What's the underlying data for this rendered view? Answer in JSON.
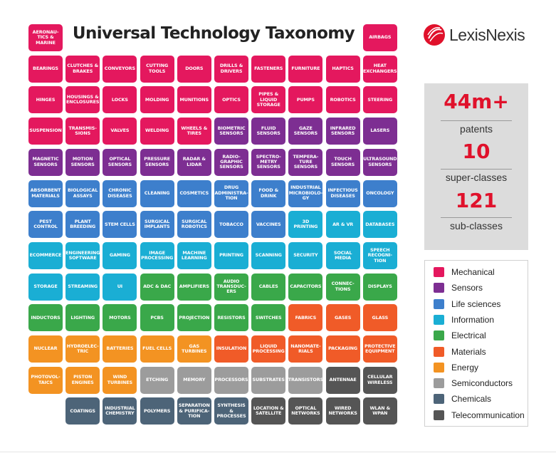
{
  "title": "Universal Technology Taxonomy",
  "brand": "LexisNexis",
  "colors": {
    "mechanical": "#e4185e",
    "sensors": "#7d2e92",
    "life_sciences": "#3d7fcc",
    "information": "#1aaed4",
    "electrical": "#3aa84a",
    "materials": "#f05b28",
    "energy": "#f39322",
    "semiconductors": "#9c9c9c",
    "chemicals": "#4d6478",
    "telecommunication": "#555555",
    "accent": "#e0112b"
  },
  "stats": [
    {
      "value": "44m+",
      "label": "patents"
    },
    {
      "value": "10",
      "label": "super-classes"
    },
    {
      "value": "121",
      "label": "sub-classes"
    }
  ],
  "legend": [
    {
      "label": "Mechanical",
      "category": "mechanical"
    },
    {
      "label": "Sensors",
      "category": "sensors"
    },
    {
      "label": "Life sciences",
      "category": "life_sciences"
    },
    {
      "label": "Information",
      "category": "information"
    },
    {
      "label": "Electrical",
      "category": "electrical"
    },
    {
      "label": "Materials",
      "category": "materials"
    },
    {
      "label": "Energy",
      "category": "energy"
    },
    {
      "label": "Semiconductors",
      "category": "semiconductors"
    },
    {
      "label": "Chemicals",
      "category": "chemicals"
    },
    {
      "label": "Telecommunication",
      "category": "telecommunication"
    }
  ],
  "tiles": [
    {
      "label": "AERONAU-\nTICS &\nMARINE",
      "category": "mechanical",
      "row": 0,
      "col": 0
    },
    {
      "label": "AIRBAGS",
      "category": "mechanical",
      "row": 0,
      "col": 9
    },
    {
      "label": "BEARINGS",
      "category": "mechanical",
      "row": 1,
      "col": 0
    },
    {
      "label": "CLUTCHES &\nBRAKES",
      "category": "mechanical",
      "row": 1,
      "col": 1
    },
    {
      "label": "CONVEYORS",
      "category": "mechanical",
      "row": 1,
      "col": 2
    },
    {
      "label": "CUTTING\nTOOLS",
      "category": "mechanical",
      "row": 1,
      "col": 3
    },
    {
      "label": "DOORS",
      "category": "mechanical",
      "row": 1,
      "col": 4
    },
    {
      "label": "DRILLS &\nDRIVERS",
      "category": "mechanical",
      "row": 1,
      "col": 5
    },
    {
      "label": "FASTENERS",
      "category": "mechanical",
      "row": 1,
      "col": 6
    },
    {
      "label": "FURNITURE",
      "category": "mechanical",
      "row": 1,
      "col": 7
    },
    {
      "label": "HAPTICS",
      "category": "mechanical",
      "row": 1,
      "col": 8
    },
    {
      "label": "HEAT\nEXCHANGERS",
      "category": "mechanical",
      "row": 1,
      "col": 9
    },
    {
      "label": "HINGES",
      "category": "mechanical",
      "row": 2,
      "col": 0
    },
    {
      "label": "HOUSINGS &\nENCLOSURES",
      "category": "mechanical",
      "row": 2,
      "col": 1
    },
    {
      "label": "LOCKS",
      "category": "mechanical",
      "row": 2,
      "col": 2
    },
    {
      "label": "MOLDING",
      "category": "mechanical",
      "row": 2,
      "col": 3
    },
    {
      "label": "MUNITIONS",
      "category": "mechanical",
      "row": 2,
      "col": 4
    },
    {
      "label": "OPTICS",
      "category": "mechanical",
      "row": 2,
      "col": 5
    },
    {
      "label": "PIPES &\nLIQUID\nSTORAGE",
      "category": "mechanical",
      "row": 2,
      "col": 6
    },
    {
      "label": "PUMPS",
      "category": "mechanical",
      "row": 2,
      "col": 7
    },
    {
      "label": "ROBOTICS",
      "category": "mechanical",
      "row": 2,
      "col": 8
    },
    {
      "label": "STEERING",
      "category": "mechanical",
      "row": 2,
      "col": 9
    },
    {
      "label": "SUSPENSION",
      "category": "mechanical",
      "row": 3,
      "col": 0
    },
    {
      "label": "TRANSMIS-\nSIONS",
      "category": "mechanical",
      "row": 3,
      "col": 1
    },
    {
      "label": "VALVES",
      "category": "mechanical",
      "row": 3,
      "col": 2
    },
    {
      "label": "WELDING",
      "category": "mechanical",
      "row": 3,
      "col": 3
    },
    {
      "label": "WHEELS &\nTIRES",
      "category": "mechanical",
      "row": 3,
      "col": 4
    },
    {
      "label": "BIOMETRIC\nSENSORS",
      "category": "sensors",
      "row": 3,
      "col": 5
    },
    {
      "label": "FLUID\nSENSORS",
      "category": "sensors",
      "row": 3,
      "col": 6
    },
    {
      "label": "GAZE\nSENSORS",
      "category": "sensors",
      "row": 3,
      "col": 7
    },
    {
      "label": "INFRARED\nSENSORS",
      "category": "sensors",
      "row": 3,
      "col": 8
    },
    {
      "label": "LASERS",
      "category": "sensors",
      "row": 3,
      "col": 9
    },
    {
      "label": "MAGNETIC\nSENSORS",
      "category": "sensors",
      "row": 4,
      "col": 0
    },
    {
      "label": "MOTION\nSENSORS",
      "category": "sensors",
      "row": 4,
      "col": 1
    },
    {
      "label": "OPTICAL\nSENSORS",
      "category": "sensors",
      "row": 4,
      "col": 2
    },
    {
      "label": "PRESSURE\nSENSORS",
      "category": "sensors",
      "row": 4,
      "col": 3
    },
    {
      "label": "RADAR &\nLIDAR",
      "category": "sensors",
      "row": 4,
      "col": 4
    },
    {
      "label": "RADIO-\nGRAPHIC\nSENSORS",
      "category": "sensors",
      "row": 4,
      "col": 5
    },
    {
      "label": "SPECTRO-\nMETRY\nSENSORS",
      "category": "sensors",
      "row": 4,
      "col": 6
    },
    {
      "label": "TEMPERA-\nTURE\nSENSORS",
      "category": "sensors",
      "row": 4,
      "col": 7
    },
    {
      "label": "TOUCH\nSENSORS",
      "category": "sensors",
      "row": 4,
      "col": 8
    },
    {
      "label": "ULTRASOUND\nSENSORS",
      "category": "sensors",
      "row": 4,
      "col": 9
    },
    {
      "label": "ABSORBENT\nMATERIALS",
      "category": "life_sciences",
      "row": 5,
      "col": 0
    },
    {
      "label": "BIOLOGICAL\nASSAYS",
      "category": "life_sciences",
      "row": 5,
      "col": 1
    },
    {
      "label": "CHRONIC\nDISEASES",
      "category": "life_sciences",
      "row": 5,
      "col": 2
    },
    {
      "label": "CLEANING",
      "category": "life_sciences",
      "row": 5,
      "col": 3
    },
    {
      "label": "COSMETICS",
      "category": "life_sciences",
      "row": 5,
      "col": 4
    },
    {
      "label": "DRUG\nADMINISTRA-\nTION",
      "category": "life_sciences",
      "row": 5,
      "col": 5
    },
    {
      "label": "FOOD &\nDRINK",
      "category": "life_sciences",
      "row": 5,
      "col": 6
    },
    {
      "label": "INDUSTRIAL\nMICROBIOLO-\nGY",
      "category": "life_sciences",
      "row": 5,
      "col": 7
    },
    {
      "label": "INFECTIOUS\nDISEASES",
      "category": "life_sciences",
      "row": 5,
      "col": 8
    },
    {
      "label": "ONCOLOGY",
      "category": "life_sciences",
      "row": 5,
      "col": 9
    },
    {
      "label": "PEST\nCONTROL",
      "category": "life_sciences",
      "row": 6,
      "col": 0
    },
    {
      "label": "PLANT\nBREEDING",
      "category": "life_sciences",
      "row": 6,
      "col": 1
    },
    {
      "label": "STEM CELLS",
      "category": "life_sciences",
      "row": 6,
      "col": 2
    },
    {
      "label": "SURGICAL\nIMPLANTS",
      "category": "life_sciences",
      "row": 6,
      "col": 3
    },
    {
      "label": "SURGICAL\nROBOTICS",
      "category": "life_sciences",
      "row": 6,
      "col": 4
    },
    {
      "label": "TOBACCO",
      "category": "life_sciences",
      "row": 6,
      "col": 5
    },
    {
      "label": "VACCINES",
      "category": "life_sciences",
      "row": 6,
      "col": 6
    },
    {
      "label": "3D\nPRINTING",
      "category": "information",
      "row": 6,
      "col": 7
    },
    {
      "label": "AR & VR",
      "category": "information",
      "row": 6,
      "col": 8
    },
    {
      "label": "DATABASES",
      "category": "information",
      "row": 6,
      "col": 9
    },
    {
      "label": "ECOMMERCE",
      "category": "information",
      "row": 7,
      "col": 0
    },
    {
      "label": "ENGINEERING\nSOFTWARE",
      "category": "information",
      "row": 7,
      "col": 1
    },
    {
      "label": "GAMING",
      "category": "information",
      "row": 7,
      "col": 2
    },
    {
      "label": "IMAGE\nPROCESSING",
      "category": "information",
      "row": 7,
      "col": 3
    },
    {
      "label": "MACHINE\nLEARNING",
      "category": "information",
      "row": 7,
      "col": 4
    },
    {
      "label": "PRINTING",
      "category": "information",
      "row": 7,
      "col": 5
    },
    {
      "label": "SCANNING",
      "category": "information",
      "row": 7,
      "col": 6
    },
    {
      "label": "SECURITY",
      "category": "information",
      "row": 7,
      "col": 7
    },
    {
      "label": "SOCIAL\nMEDIA",
      "category": "information",
      "row": 7,
      "col": 8
    },
    {
      "label": "SPEECH\nRECOGNI-\nTION",
      "category": "information",
      "row": 7,
      "col": 9
    },
    {
      "label": "STORAGE",
      "category": "information",
      "row": 8,
      "col": 0
    },
    {
      "label": "STREAMING",
      "category": "information",
      "row": 8,
      "col": 1
    },
    {
      "label": "UI",
      "category": "information",
      "row": 8,
      "col": 2
    },
    {
      "label": "ADC & DAC",
      "category": "electrical",
      "row": 8,
      "col": 3
    },
    {
      "label": "AMPLIFIERS",
      "category": "electrical",
      "row": 8,
      "col": 4
    },
    {
      "label": "AUDIO\nTRANSDUC-\nERS",
      "category": "electrical",
      "row": 8,
      "col": 5
    },
    {
      "label": "CABLES",
      "category": "electrical",
      "row": 8,
      "col": 6
    },
    {
      "label": "CAPACITORS",
      "category": "electrical",
      "row": 8,
      "col": 7
    },
    {
      "label": "CONNEC-\nTIONS",
      "category": "electrical",
      "row": 8,
      "col": 8
    },
    {
      "label": "DISPLAYS",
      "category": "electrical",
      "row": 8,
      "col": 9
    },
    {
      "label": "INDUCTORS",
      "category": "electrical",
      "row": 9,
      "col": 0
    },
    {
      "label": "LIGHTING",
      "category": "electrical",
      "row": 9,
      "col": 1
    },
    {
      "label": "MOTORS",
      "category": "electrical",
      "row": 9,
      "col": 2
    },
    {
      "label": "PCBS",
      "category": "electrical",
      "row": 9,
      "col": 3
    },
    {
      "label": "PROJECTION",
      "category": "electrical",
      "row": 9,
      "col": 4
    },
    {
      "label": "RESISTORS",
      "category": "electrical",
      "row": 9,
      "col": 5
    },
    {
      "label": "SWITCHES",
      "category": "electrical",
      "row": 9,
      "col": 6
    },
    {
      "label": "FABRICS",
      "category": "materials",
      "row": 9,
      "col": 7
    },
    {
      "label": "GASES",
      "category": "materials",
      "row": 9,
      "col": 8
    },
    {
      "label": "GLASS",
      "category": "materials",
      "row": 9,
      "col": 9
    },
    {
      "label": "NUCLEAR",
      "category": "energy",
      "row": 10,
      "col": 0
    },
    {
      "label": "HYDROELEC-\nTRIC",
      "category": "energy",
      "row": 10,
      "col": 1
    },
    {
      "label": "BATTERIES",
      "category": "energy",
      "row": 10,
      "col": 2
    },
    {
      "label": "FUEL CELLS",
      "category": "energy",
      "row": 10,
      "col": 3
    },
    {
      "label": "GAS\nTURBINES",
      "category": "energy",
      "row": 10,
      "col": 4
    },
    {
      "label": "INSULATION",
      "category": "materials",
      "row": 10,
      "col": 5
    },
    {
      "label": "LIQUID\nPROCESSING",
      "category": "materials",
      "row": 10,
      "col": 6
    },
    {
      "label": "NANOMATE-\nRIALS",
      "category": "materials",
      "row": 10,
      "col": 7
    },
    {
      "label": "PACKAGING",
      "category": "materials",
      "row": 10,
      "col": 8
    },
    {
      "label": "PROTECTIVE\nEQUIPMENT",
      "category": "materials",
      "row": 10,
      "col": 9
    },
    {
      "label": "PHOTOVOL-\nTAICS",
      "category": "energy",
      "row": 11,
      "col": 0
    },
    {
      "label": "PISTON\nENGINES",
      "category": "energy",
      "row": 11,
      "col": 1
    },
    {
      "label": "WIND\nTURBINES",
      "category": "energy",
      "row": 11,
      "col": 2
    },
    {
      "label": "ETCHING",
      "category": "semiconductors",
      "row": 11,
      "col": 3
    },
    {
      "label": "MEMORY",
      "category": "semiconductors",
      "row": 11,
      "col": 4
    },
    {
      "label": "PROCESSORS",
      "category": "semiconductors",
      "row": 11,
      "col": 5
    },
    {
      "label": "SUBSTRATES",
      "category": "semiconductors",
      "row": 11,
      "col": 6
    },
    {
      "label": "TRANSISTORS",
      "category": "semiconductors",
      "row": 11,
      "col": 7
    },
    {
      "label": "ANTENNAE",
      "category": "telecommunication",
      "row": 11,
      "col": 8
    },
    {
      "label": "CELLULAR\nWIRELESS",
      "category": "telecommunication",
      "row": 11,
      "col": 9
    },
    {
      "label": "COATINGS",
      "category": "chemicals",
      "row": 12,
      "col": 1
    },
    {
      "label": "INDUSTRIAL\nCHEMISTRY",
      "category": "chemicals",
      "row": 12,
      "col": 2
    },
    {
      "label": "POLYMERS",
      "category": "chemicals",
      "row": 12,
      "col": 3
    },
    {
      "label": "SEPARATION\n& PURIFICA-\nTION",
      "category": "chemicals",
      "row": 12,
      "col": 4
    },
    {
      "label": "SYNTHESIS &\nPROCESSES",
      "category": "chemicals",
      "row": 12,
      "col": 5
    },
    {
      "label": "LOCATION &\nSATELLITE",
      "category": "telecommunication",
      "row": 12,
      "col": 6
    },
    {
      "label": "OPTICAL\nNETWORKS",
      "category": "telecommunication",
      "row": 12,
      "col": 7
    },
    {
      "label": "WIRED\nNETWORKS",
      "category": "telecommunication",
      "row": 12,
      "col": 8
    },
    {
      "label": "WLAN &\nWPAN",
      "category": "telecommunication",
      "row": 12,
      "col": 9
    }
  ]
}
